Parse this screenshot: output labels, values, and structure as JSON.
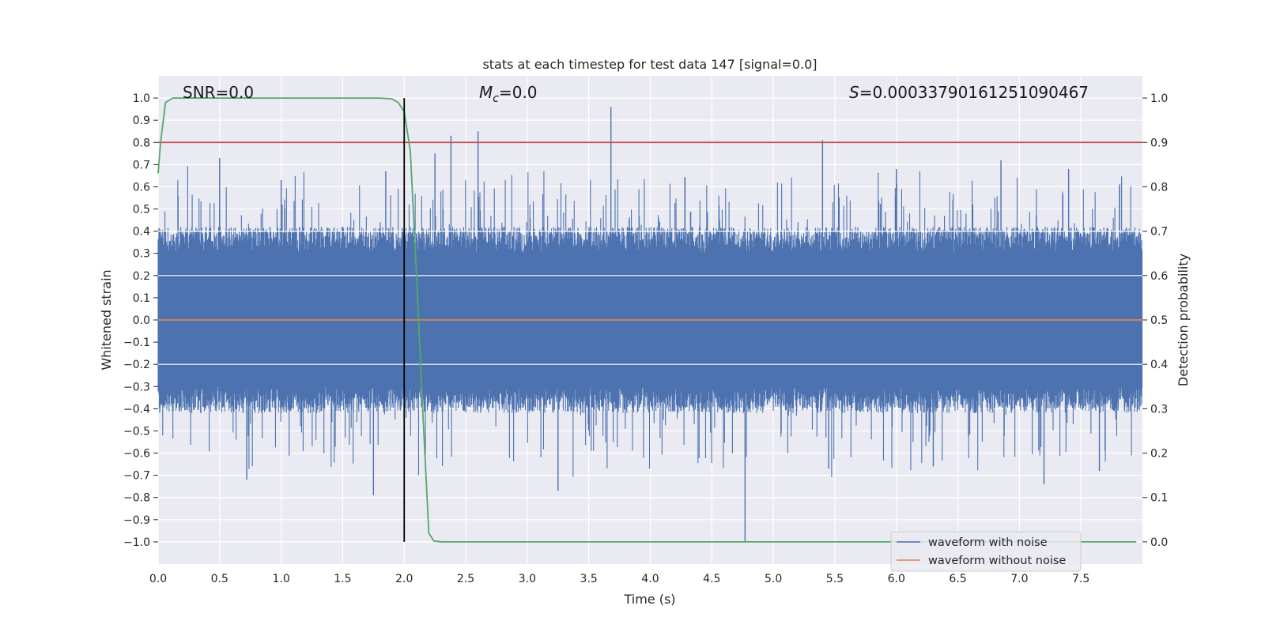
{
  "chart_data": {
    "type": "line",
    "title": "stats at each timestep for test data 147 [signal=0.0]",
    "xlabel": "Time (s)",
    "ylabel": "Whitened strain",
    "y2label": "Detection probability",
    "xlim": [
      0.0,
      8.0
    ],
    "ylim": [
      -1.1,
      1.1
    ],
    "y2lim": [
      -0.05,
      1.05
    ],
    "xticks": [
      0.0,
      0.5,
      1.0,
      1.5,
      2.0,
      2.5,
      3.0,
      3.5,
      4.0,
      4.5,
      5.0,
      5.5,
      6.0,
      6.5,
      7.0,
      7.5
    ],
    "xtick_labels": [
      "0.0",
      "0.5",
      "1.0",
      "1.5",
      "2.0",
      "2.5",
      "3.0",
      "3.5",
      "4.0",
      "4.5",
      "5.0",
      "5.5",
      "6.0",
      "6.5",
      "7.0",
      "7.5"
    ],
    "yticks": [
      -1.0,
      -0.9,
      -0.8,
      -0.7,
      -0.6,
      -0.5,
      -0.4,
      -0.3,
      -0.2,
      -0.1,
      0.0,
      0.1,
      0.2,
      0.3,
      0.4,
      0.5,
      0.6,
      0.7,
      0.8,
      0.9,
      1.0
    ],
    "ytick_labels": [
      "−1.0",
      "−0.9",
      "−0.8",
      "−0.7",
      "−0.6",
      "−0.5",
      "−0.4",
      "−0.3",
      "−0.2",
      "−0.1",
      "0.0",
      "0.1",
      "0.2",
      "0.3",
      "0.4",
      "0.5",
      "0.6",
      "0.7",
      "0.8",
      "0.9",
      "1.0"
    ],
    "y2ticks": [
      0.0,
      0.1,
      0.2,
      0.3,
      0.4,
      0.5,
      0.6,
      0.7,
      0.8,
      0.9,
      1.0
    ],
    "y2tick_labels": [
      "0.0",
      "0.1",
      "0.2",
      "0.3",
      "0.4",
      "0.5",
      "0.6",
      "0.7",
      "0.8",
      "0.9",
      "1.0"
    ],
    "grid": true,
    "annotations": {
      "snr": "SNR=0.0",
      "mc_symbol": "M",
      "mc_sub": "c",
      "mc_value": "=0.0",
      "s_symbol": "S",
      "s_value": "=0.0003379016125109046​7"
    },
    "series": [
      {
        "name": "waveform with noise",
        "color": "#4c72b0",
        "axis": "left",
        "kind": "noise",
        "duration": 8.0,
        "envelope_upper": 0.3,
        "envelope_lower": -0.3,
        "peaks": [
          {
            "t": 0.5,
            "v": 0.73
          },
          {
            "t": 1.0,
            "v": 0.63
          },
          {
            "t": 1.85,
            "v": 0.67
          },
          {
            "t": 2.25,
            "v": 0.75
          },
          {
            "t": 2.38,
            "v": 0.83
          },
          {
            "t": 2.6,
            "v": 0.85
          },
          {
            "t": 3.68,
            "v": 0.96
          },
          {
            "t": 5.4,
            "v": 0.81
          },
          {
            "t": 6.0,
            "v": 0.68
          },
          {
            "t": 6.85,
            "v": 0.72
          },
          {
            "t": 7.4,
            "v": 0.68
          },
          {
            "t": 0.72,
            "v": -0.72
          },
          {
            "t": 1.75,
            "v": -0.79
          },
          {
            "t": 3.25,
            "v": -0.77
          },
          {
            "t": 4.77,
            "v": -1.0
          },
          {
            "t": 5.45,
            "v": -0.67
          },
          {
            "t": 6.3,
            "v": -0.66
          },
          {
            "t": 7.2,
            "v": -0.74
          },
          {
            "t": 7.65,
            "v": -0.68
          }
        ]
      },
      {
        "name": "waveform without noise",
        "color": "#dd8452",
        "axis": "left",
        "x": [
          0.0,
          8.0
        ],
        "y": [
          0.0,
          0.0
        ]
      },
      {
        "name": "detection probability",
        "color": "#55a868",
        "axis": "right",
        "x": [
          0.0,
          0.02,
          0.06,
          0.12,
          0.5,
          1.0,
          1.5,
          1.8,
          1.9,
          1.95,
          2.0,
          2.05,
          2.1,
          2.15,
          2.2,
          2.24,
          2.3,
          4.0,
          6.0,
          7.95
        ],
        "y": [
          0.83,
          0.9,
          0.99,
          1.0,
          1.0,
          1.0,
          1.0,
          1.0,
          0.998,
          0.99,
          0.97,
          0.88,
          0.6,
          0.3,
          0.02,
          0.002,
          0.0,
          0.0,
          0.0,
          0.0
        ]
      },
      {
        "name": "threshold",
        "color": "#c44e52",
        "axis": "right",
        "x": [
          0.0,
          8.0
        ],
        "y": [
          0.9,
          0.9
        ]
      }
    ],
    "vline": {
      "x": 2.0,
      "y2_range": [
        0.0,
        1.0
      ],
      "color": "#000000"
    },
    "legend": {
      "placement": "lower-right",
      "entries": [
        {
          "label": "waveform with noise",
          "color": "#4c72b0"
        },
        {
          "label": "waveform without noise",
          "color": "#dd8452"
        }
      ]
    },
    "colors": {
      "plot_bg": "#eaeaf2",
      "grid": "#ffffff",
      "noise": "#4c72b0",
      "clean": "#dd8452",
      "probability": "#55a868",
      "threshold": "#c44e52"
    }
  }
}
